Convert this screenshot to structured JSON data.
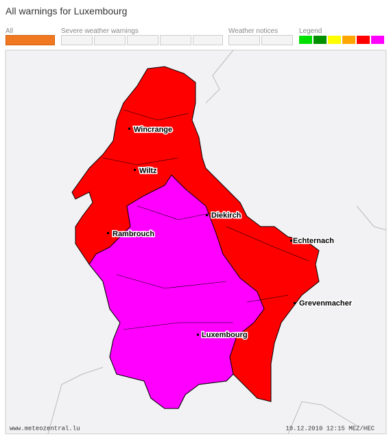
{
  "header": {
    "title": "All warnings for Luxembourg"
  },
  "toolbar": {
    "groups": [
      "All",
      "Severe weather warnings",
      "Weather notices",
      "Legend"
    ],
    "legend_colors": [
      "#00e000",
      "#009000",
      "#ffff00",
      "#ffa500",
      "#ff0000",
      "#ff00ff"
    ]
  },
  "map": {
    "cities": [
      "Wincrange",
      "Wiltz",
      "Diekirch",
      "Rambrouch",
      "Echternach",
      "Grevenmacher",
      "Luxembourg"
    ],
    "source": "www.meteozentral.lu",
    "timestamp": "19.12.2010 12:15 MEZ/HEC"
  }
}
